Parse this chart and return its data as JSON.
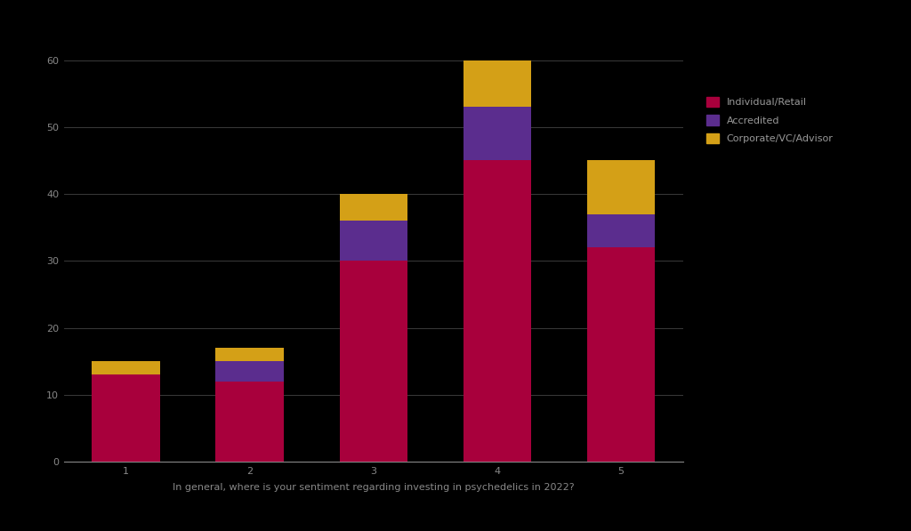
{
  "categories": [
    "1",
    "2",
    "3",
    "4",
    "5"
  ],
  "series": {
    "Individual/Retail": [
      13,
      12,
      30,
      45,
      32
    ],
    "Accredited": [
      0,
      3,
      6,
      8,
      5
    ],
    "Corporate/VC/Advisor": [
      2,
      2,
      4,
      7,
      8
    ]
  },
  "colors": {
    "Individual/Retail": "#A8003C",
    "Accredited": "#5B2D8E",
    "Corporate/VC/Advisor": "#D4A017"
  },
  "xlabel": "In general, where is your sentiment regarding investing in psychedelics in 2022?",
  "ylim": [
    0,
    65
  ],
  "yticks": [
    0,
    10,
    20,
    30,
    40,
    50,
    60
  ],
  "background_color": "#000000",
  "text_color": "#888888",
  "grid_color": "#444444",
  "legend_text_color": "#999999",
  "bar_width": 0.55,
  "xlabel_fontsize": 8,
  "tick_fontsize": 8,
  "legend_fontsize": 8
}
